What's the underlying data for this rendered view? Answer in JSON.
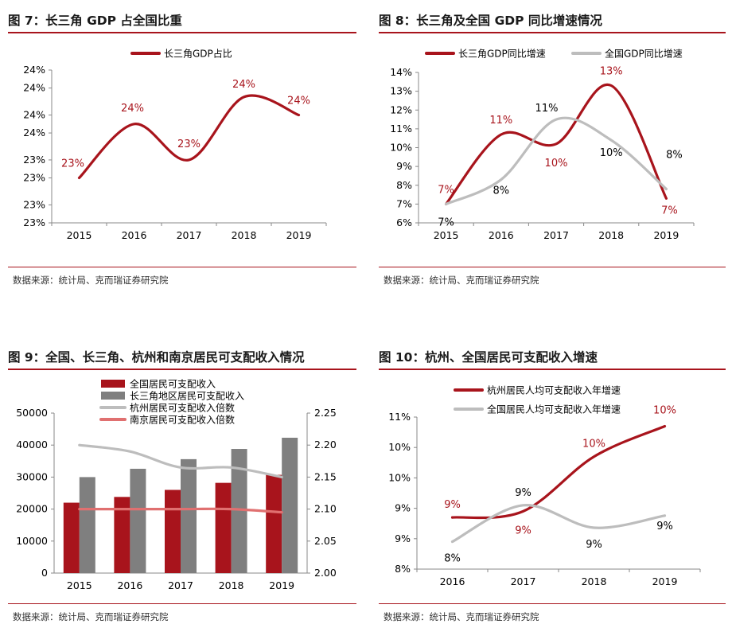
{
  "colors": {
    "accent": "#a8141c",
    "gray": "#bdbdbd",
    "gray_bar": "#7f7f7f",
    "pink": "#e07070"
  },
  "source": "数据来源：统计局、克而瑞证券研究院",
  "charts": [
    {
      "id": "fig7",
      "title": "图 7：长三角 GDP 占全国比重",
      "chart_data": {
        "type": "line",
        "categories": [
          "2015",
          "2016",
          "2017",
          "2018",
          "2019"
        ],
        "series": [
          {
            "name": "长三角GDP占比",
            "values": [
              23.3,
              23.9,
              23.5,
              24.2,
              24.0
            ],
            "labels": [
              "23%",
              "24%",
              "23%",
              "24%",
              "24%"
            ]
          }
        ],
        "ylim": [
          22.8,
          24.5
        ],
        "yticks": [
          22.8,
          23.0,
          23.3,
          23.5,
          23.8,
          24.0,
          24.3,
          24.5
        ],
        "ytick_labels": [
          "23%",
          "23%",
          "23%",
          "23%",
          "24%",
          "24%",
          "24%",
          "24%"
        ]
      }
    },
    {
      "id": "fig8",
      "title": "图 8：长三角及全国 GDP 同比增速情况",
      "chart_data": {
        "type": "line",
        "categories": [
          "2015",
          "2016",
          "2017",
          "2018",
          "2019"
        ],
        "series": [
          {
            "name": "长三角GDP同比增速",
            "values": [
              7.0,
              10.7,
              10.2,
              13.3,
              7.3
            ],
            "labels": [
              "7%",
              "11%",
              "10%",
              "13%",
              "7%"
            ]
          },
          {
            "name": "全国GDP同比增速",
            "values": [
              7.0,
              8.3,
              11.5,
              10.4,
              7.8
            ],
            "labels": [
              "7%",
              "8%",
              "11%",
              "10%",
              "8%"
            ]
          }
        ],
        "ylim": [
          6,
          14
        ],
        "yticks": [
          6,
          7,
          8,
          9,
          10,
          11,
          12,
          13,
          14
        ],
        "ytick_labels": [
          "6%",
          "7%",
          "8%",
          "9%",
          "10%",
          "11%",
          "12%",
          "13%",
          "14%"
        ]
      }
    },
    {
      "id": "fig9",
      "title": "图 9：全国、长三角、杭州和南京居民可支配收入情况",
      "chart_data": {
        "type": "bar",
        "categories": [
          "2015",
          "2016",
          "2017",
          "2018",
          "2019"
        ],
        "series": [
          {
            "name": "全国居民可支配收入",
            "kind": "bar",
            "axis": "left",
            "values": [
              22000,
              23800,
              26000,
              28200,
              30700
            ]
          },
          {
            "name": "长三角地区居民可支配收入",
            "kind": "bar",
            "axis": "left",
            "values": [
              30000,
              32600,
              35600,
              38800,
              42300
            ]
          },
          {
            "name": "杭州居民可支配收入倍数",
            "kind": "line",
            "axis": "right",
            "values": [
              2.2,
              2.19,
              2.165,
              2.165,
              2.15
            ]
          },
          {
            "name": "南京居民可支配收入倍数",
            "kind": "line",
            "axis": "right",
            "values": [
              2.1,
              2.1,
              2.1,
              2.1,
              2.095
            ]
          }
        ],
        "ylim": [
          0,
          50000
        ],
        "yticks": [
          0,
          10000,
          20000,
          30000,
          40000,
          50000
        ],
        "ytick_labels": [
          "0",
          "10000",
          "20000",
          "30000",
          "40000",
          "50000"
        ],
        "y2lim": [
          2.0,
          2.25
        ],
        "y2ticks": [
          2.0,
          2.05,
          2.1,
          2.15,
          2.2,
          2.25
        ],
        "y2tick_labels": [
          "2.00",
          "2.05",
          "2.10",
          "2.15",
          "2.20",
          "2.25"
        ]
      }
    },
    {
      "id": "fig10",
      "title": "图 10：杭州、全国居民可支配收入增速",
      "chart_data": {
        "type": "line",
        "categories": [
          "2016",
          "2017",
          "2018",
          "2019"
        ],
        "series": [
          {
            "name": "杭州居民人均可支配收入年增速",
            "values": [
              8.85,
              8.95,
              9.85,
              10.35
            ],
            "labels": [
              "9%",
              "9%",
              "10%",
              "10%"
            ]
          },
          {
            "name": "全国居民人均可支配收入年增速",
            "values": [
              8.45,
              9.05,
              8.68,
              8.88
            ],
            "labels": [
              "8%",
              "9%",
              "9%",
              "9%"
            ]
          }
        ],
        "ylim": [
          8.0,
          10.5
        ],
        "yticks": [
          8.0,
          8.5,
          9.0,
          9.5,
          10.0,
          10.5
        ],
        "ytick_labels": [
          "8%",
          "9%",
          "9%",
          "10%",
          "10%",
          "11%"
        ]
      }
    }
  ]
}
